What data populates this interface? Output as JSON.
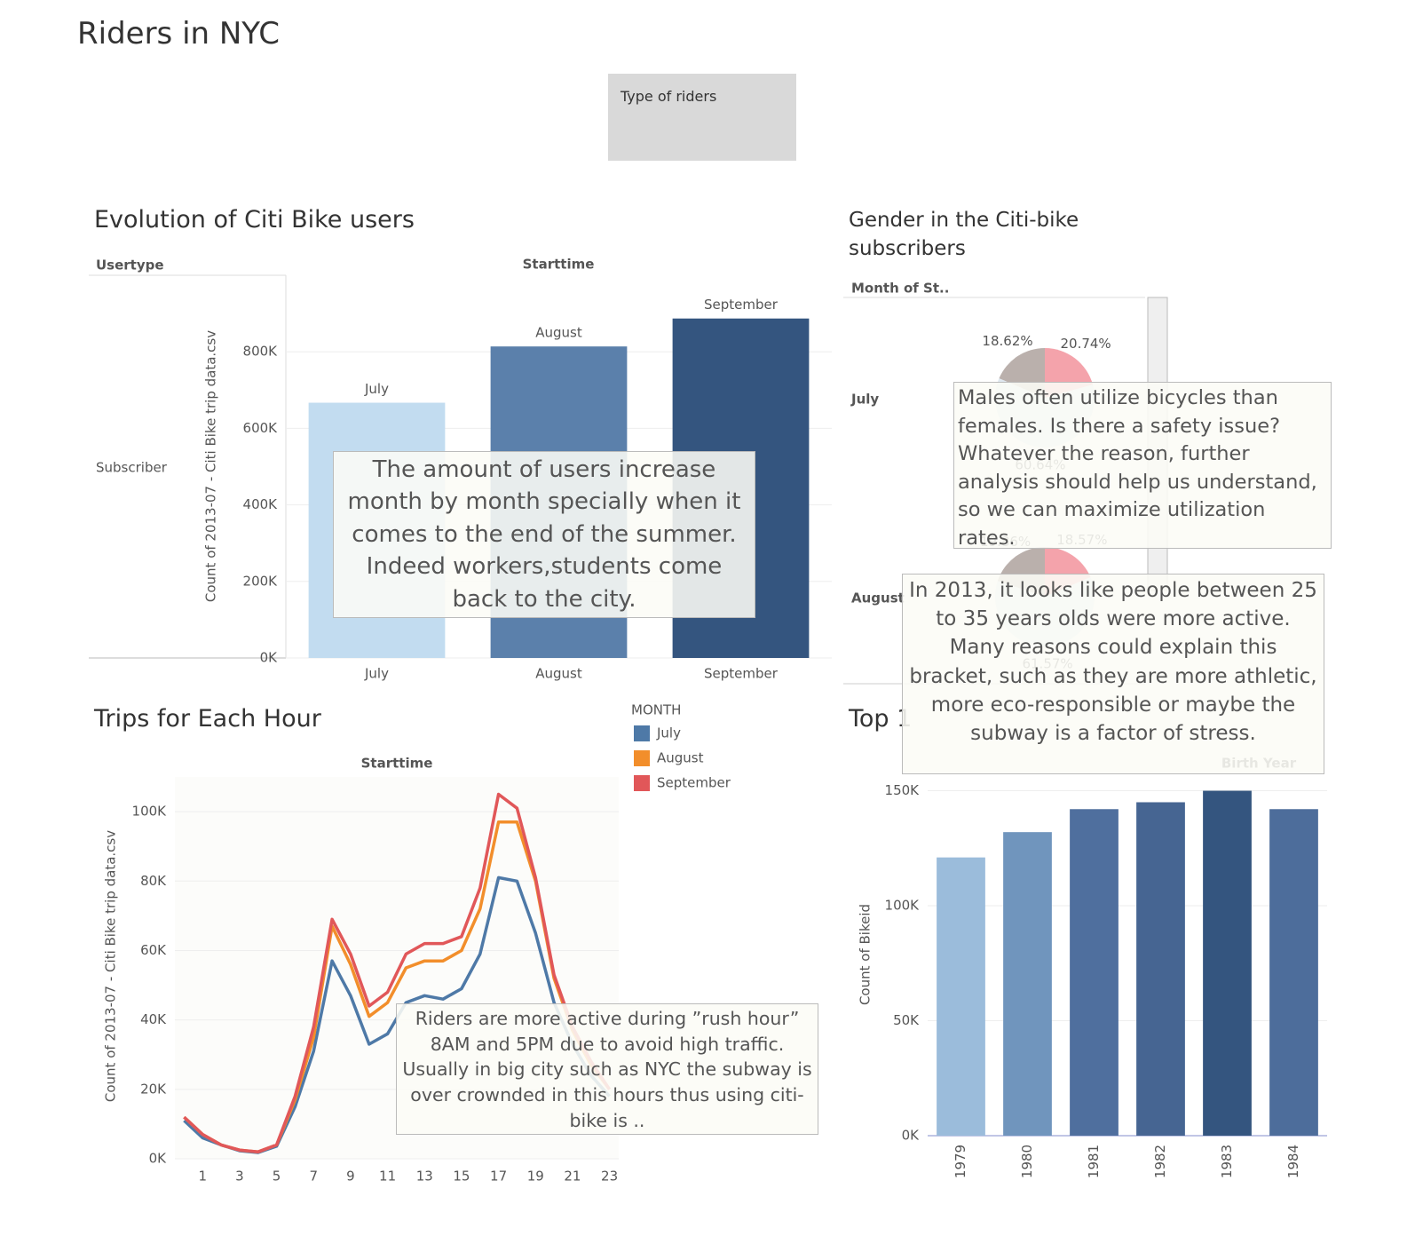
{
  "title": "Riders in NYC",
  "filter": {
    "label": "Type of riders"
  },
  "chart_data": [
    {
      "type": "bar",
      "title": "Evolution of Citi Bike users",
      "row_header": "Usertype",
      "column_header": "Starttime",
      "row_label": "Subscriber",
      "y_label": "Count of 2013-07 - Citi Bike trip data.csv",
      "categories": [
        "July",
        "August",
        "September"
      ],
      "values": [
        667000,
        814000,
        887000
      ],
      "colors": [
        "#c2dcf0",
        "#5b80ab",
        "#34557f"
      ],
      "ylim": [
        0,
        1000000
      ],
      "yticks": [
        {
          "value": 0,
          "label": "0K"
        },
        {
          "value": 200000,
          "label": "200K"
        },
        {
          "value": 400000,
          "label": "400K"
        },
        {
          "value": 600000,
          "label": "600K"
        },
        {
          "value": 800000,
          "label": "800K"
        }
      ],
      "annotation": "The amount of users increase month by month specially when it comes to the end of the summer. Indeed workers,students come back to the city."
    },
    {
      "type": "line",
      "title": "Trips  for Each Hour",
      "column_header": "Starttime",
      "y_label": "Count of 2013-07 - Citi Bike trip data.csv",
      "legend_title": "MONTH",
      "x": [
        0,
        1,
        2,
        3,
        4,
        5,
        6,
        7,
        8,
        9,
        10,
        11,
        12,
        13,
        14,
        15,
        16,
        17,
        18,
        19,
        20,
        21,
        22,
        23
      ],
      "xlim": [
        -0.5,
        23.5
      ],
      "xticks": [
        1,
        3,
        5,
        7,
        9,
        11,
        13,
        15,
        17,
        19,
        21,
        23
      ],
      "series": [
        {
          "name": "July",
          "color": "#4e79a7",
          "values": [
            11000,
            6000,
            4000,
            2300,
            1800,
            3600,
            15000,
            31000,
            57000,
            47000,
            33000,
            36000,
            45000,
            47000,
            46000,
            49000,
            59000,
            81000,
            80000,
            65000,
            45000,
            33000,
            24000,
            18000
          ]
        },
        {
          "name": "August",
          "color": "#f28e2b",
          "values": [
            12000,
            7000,
            4000,
            2500,
            2000,
            4000,
            17000,
            35000,
            67000,
            56000,
            41000,
            45000,
            55000,
            57000,
            57000,
            60000,
            72000,
            97000,
            97000,
            80000,
            52000,
            37000,
            27000,
            20000
          ]
        },
        {
          "name": "September",
          "color": "#e15759",
          "values": [
            12000,
            7000,
            4000,
            2500,
            2000,
            4000,
            18000,
            38000,
            69000,
            59000,
            44000,
            48000,
            59000,
            62000,
            62000,
            64000,
            78000,
            105000,
            101000,
            81000,
            53000,
            38000,
            28000,
            20000
          ]
        }
      ],
      "ylim": [
        0,
        110000
      ],
      "yticks": [
        {
          "value": 0,
          "label": "0K"
        },
        {
          "value": 20000,
          "label": "20K"
        },
        {
          "value": 40000,
          "label": "40K"
        },
        {
          "value": 60000,
          "label": "60K"
        },
        {
          "value": 80000,
          "label": "80K"
        },
        {
          "value": 100000,
          "label": "100K"
        }
      ],
      "annotation": "Riders are more active during ”rush hour” 8AM and 5PM due to avoid high traffic.  Usually in big city such as NYC the subway is over crownded in this hours thus using citi-bike is .."
    },
    {
      "type": "pie",
      "title": "Gender in the Citi-bike subscribers",
      "column_header": "Month of St..",
      "colors": [
        "#bab0ac",
        "#f4a3ab",
        "#dfe8f0"
      ],
      "series": [
        {
          "name": "July",
          "values": [
            18.62,
            20.74,
            60.64
          ],
          "value_labels": [
            "18.62%",
            "20.74%",
            "60.64%"
          ]
        },
        {
          "name": "August",
          "values": [
            19.86,
            18.57,
            61.57
          ],
          "value_labels": [
            "19.86%",
            "18.57%",
            "61.57%"
          ]
        }
      ],
      "annotation": "Males often utilize bicycles  than females.    Is there a safety issue? Whatever the reason, further analysis should help us understand, so we can maximize utilization rates."
    },
    {
      "type": "bar",
      "title": "Top 1",
      "column_header": "Birth Year",
      "y_label": "Count of Bikeid",
      "categories": [
        "1979",
        "1980",
        "1981",
        "1982",
        "1983",
        "1984"
      ],
      "values": [
        121000,
        132000,
        142000,
        145000,
        150000,
        142000
      ],
      "colors": [
        "#9bbcdb",
        "#7095bd",
        "#4f6f9e",
        "#466592",
        "#34557f",
        "#4d6d9b"
      ],
      "ylim": [
        0,
        156000
      ],
      "yticks": [
        {
          "value": 0,
          "label": "0K"
        },
        {
          "value": 50000,
          "label": "50K"
        },
        {
          "value": 100000,
          "label": "100K"
        },
        {
          "value": 150000,
          "label": "150K"
        }
      ],
      "annotation": "In 2013, it looks like people between 25 to 35 years olds were more active. Many reasons could explain this bracket, such as they are more athletic, more eco-responsible or maybe the subway is a factor of stress."
    }
  ]
}
